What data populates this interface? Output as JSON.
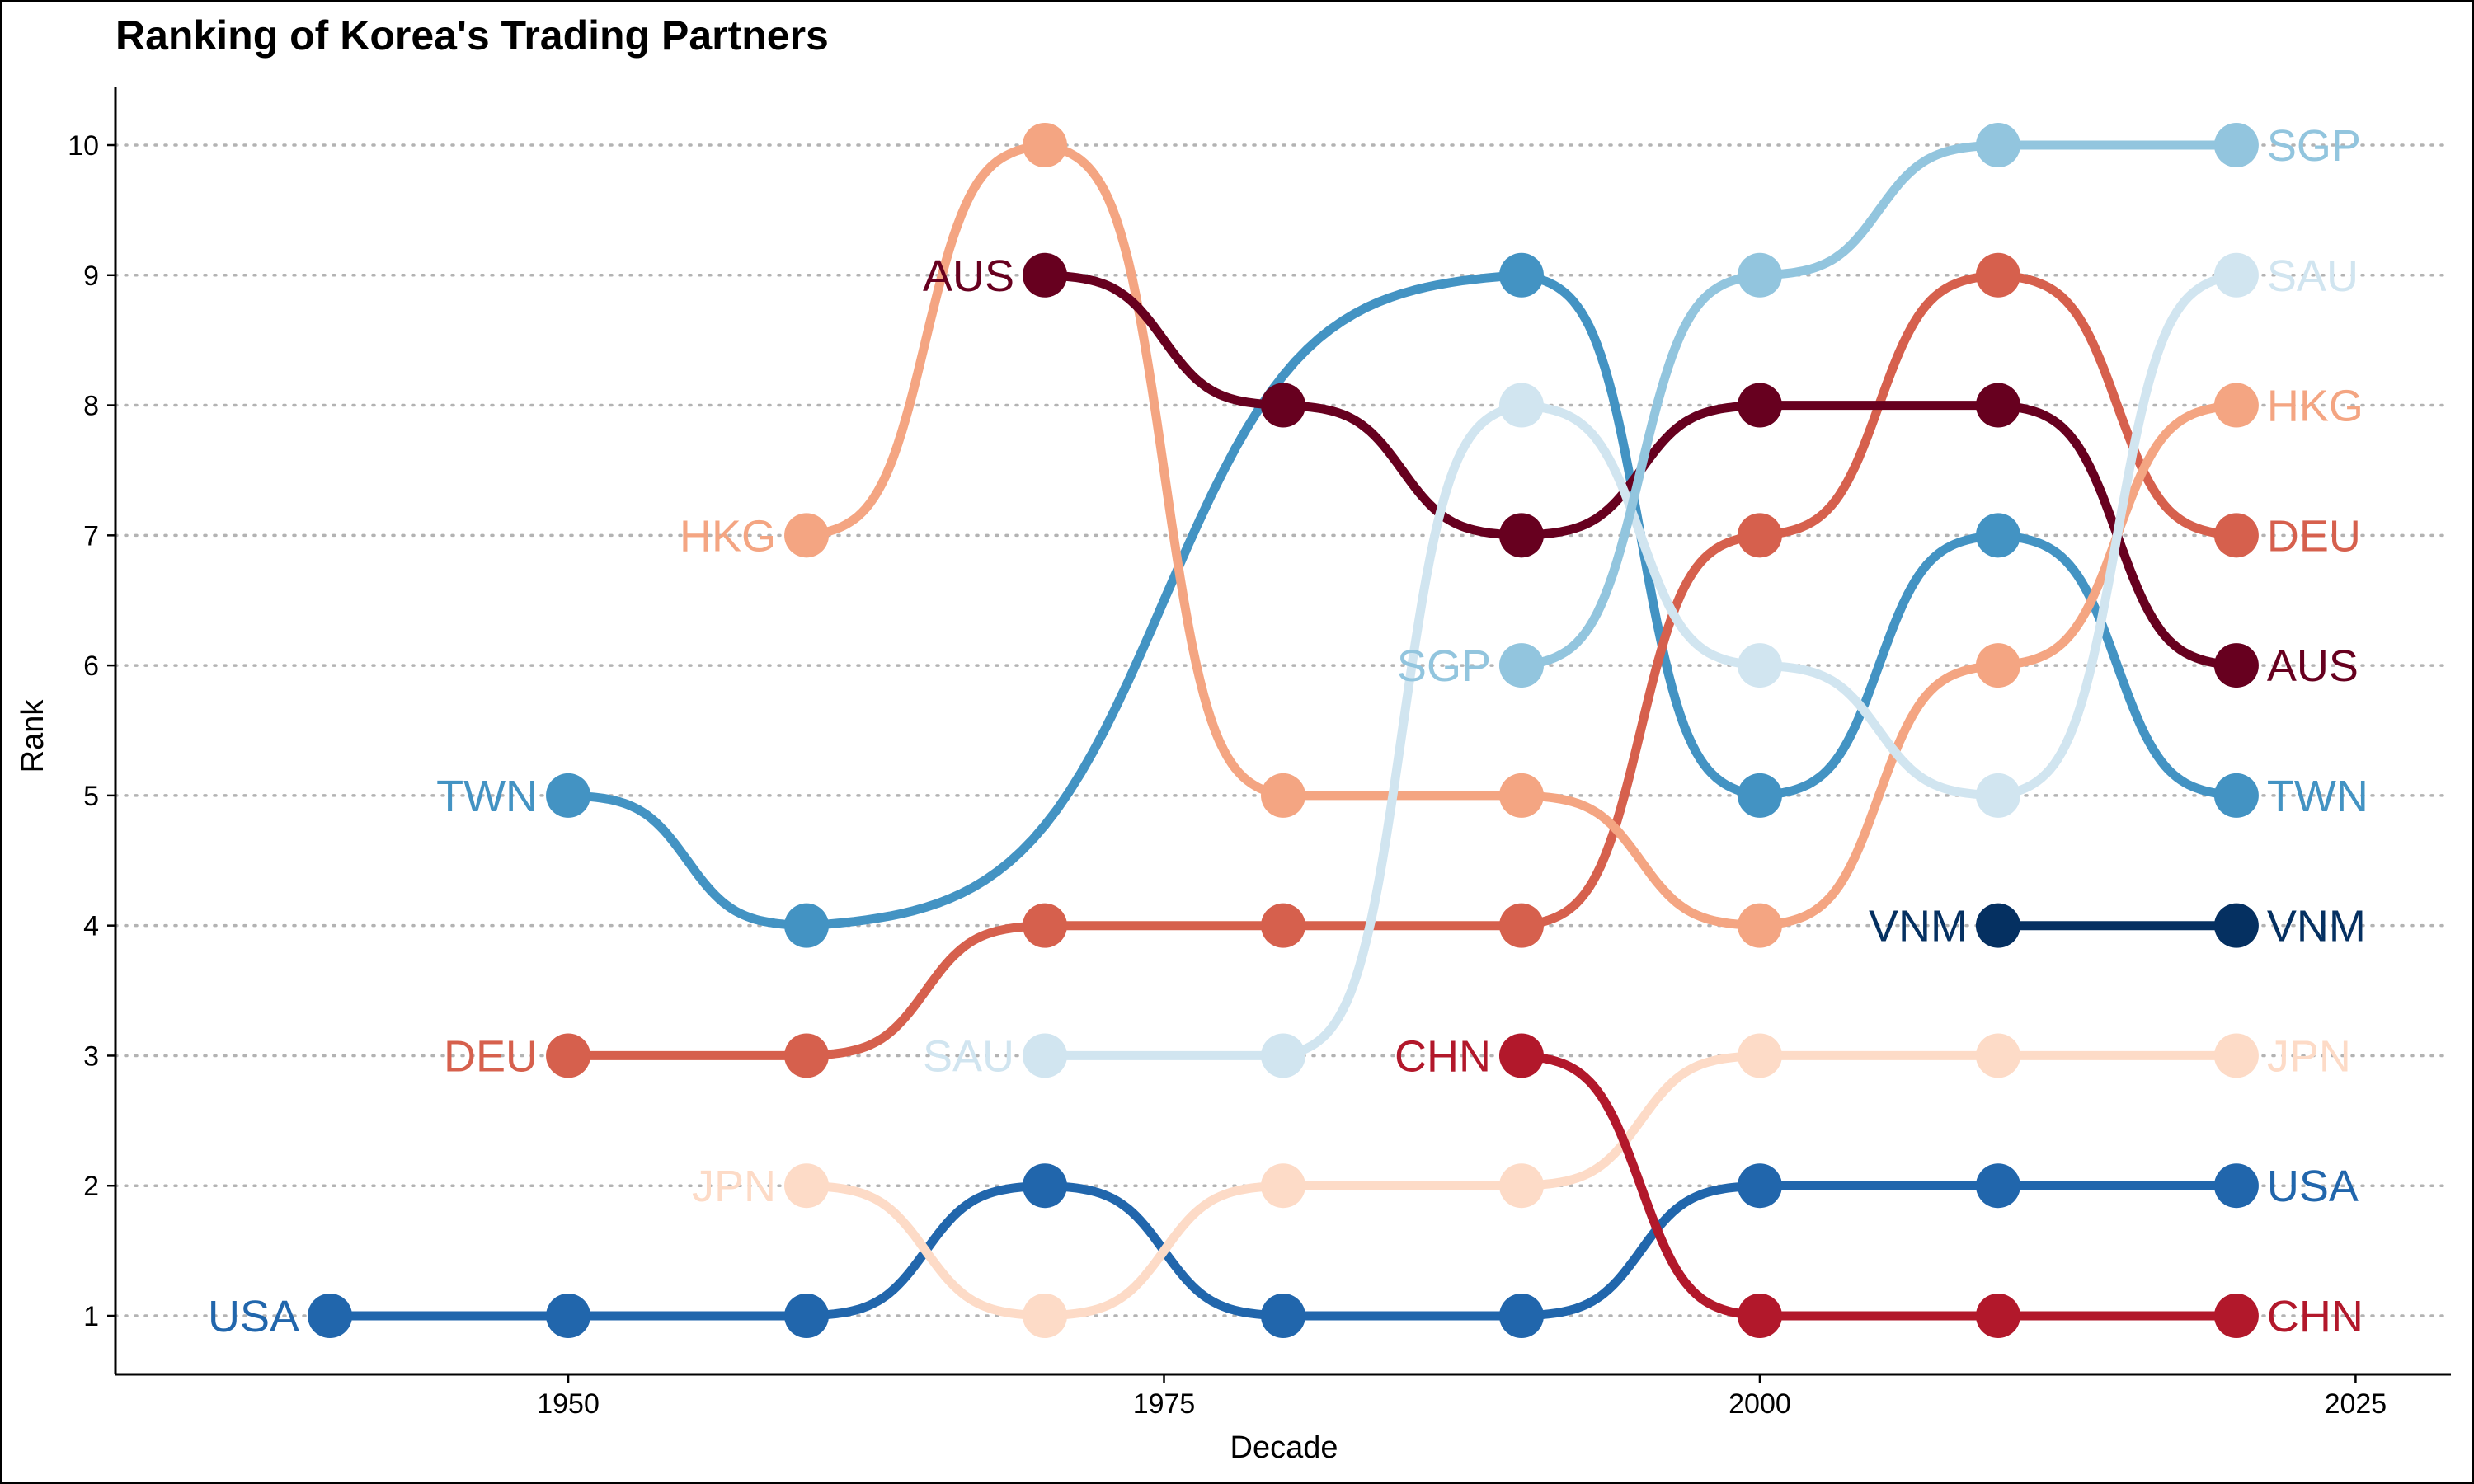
{
  "chart_data": {
    "type": "line",
    "title": "Ranking of Korea's Trading Partners",
    "xlabel": "Decade",
    "ylabel": "Rank",
    "xlim": [
      1931,
      2029
    ],
    "ylim": [
      0.55,
      10.45
    ],
    "x_ticks": [
      1950,
      1975,
      2000,
      2025
    ],
    "y_ticks": [
      1,
      2,
      3,
      4,
      5,
      6,
      7,
      8,
      9,
      10
    ],
    "grid": "horizontal dotted",
    "series": [
      {
        "name": "USA",
        "color": "#2166ac",
        "x": [
          1940,
          1950,
          1960,
          1970,
          1980,
          1990,
          2000,
          2010,
          2020
        ],
        "y": [
          1,
          1,
          1,
          2,
          1,
          1,
          2,
          2,
          2
        ]
      },
      {
        "name": "TWN",
        "color": "#4393c3",
        "x": [
          1950,
          1960,
          1990,
          2000,
          2010,
          2020
        ],
        "y": [
          5,
          4,
          9,
          5,
          7,
          5
        ]
      },
      {
        "name": "DEU",
        "color": "#d6604d",
        "x": [
          1950,
          1960,
          1970,
          1980,
          1990,
          2000,
          2010,
          2020
        ],
        "y": [
          3,
          3,
          4,
          4,
          4,
          7,
          9,
          7
        ]
      },
      {
        "name": "HKG",
        "color": "#f4a582",
        "x": [
          1960,
          1970,
          1980,
          1990,
          2000,
          2010,
          2020
        ],
        "y": [
          7,
          10,
          5,
          5,
          4,
          6,
          8
        ]
      },
      {
        "name": "JPN",
        "color": "#fddbc7",
        "x": [
          1960,
          1970,
          1980,
          1990,
          2000,
          2010,
          2020
        ],
        "y": [
          2,
          1,
          2,
          2,
          3,
          3,
          3
        ]
      },
      {
        "name": "AUS",
        "color": "#67001f",
        "x": [
          1970,
          1980,
          1990,
          2000,
          2010,
          2020
        ],
        "y": [
          9,
          8,
          7,
          8,
          8,
          6
        ]
      },
      {
        "name": "SAU",
        "color": "#d1e5f0",
        "x": [
          1970,
          1980,
          1990,
          2000,
          2010,
          2020
        ],
        "y": [
          3,
          3,
          8,
          6,
          5,
          9
        ]
      },
      {
        "name": "SGP",
        "color": "#92c5de",
        "x": [
          1990,
          2000,
          2010,
          2020
        ],
        "y": [
          6,
          9,
          10,
          10
        ]
      },
      {
        "name": "CHN",
        "color": "#b2182b",
        "x": [
          1990,
          2000,
          2010,
          2020
        ],
        "y": [
          3,
          1,
          1,
          1
        ]
      },
      {
        "name": "VNM",
        "color": "#053061",
        "x": [
          2010,
          2020
        ],
        "y": [
          4,
          4
        ]
      }
    ]
  }
}
